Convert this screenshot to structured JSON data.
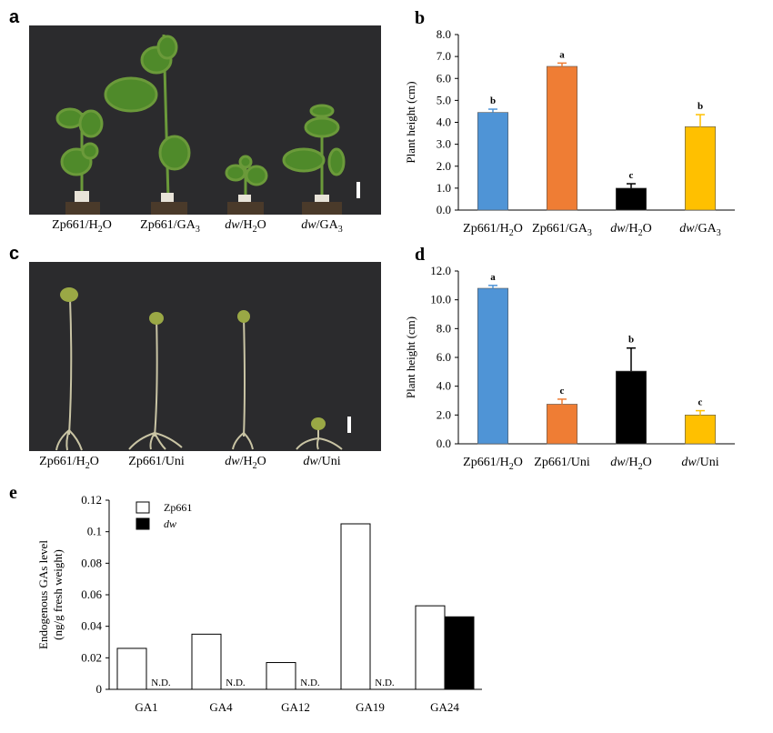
{
  "panels": {
    "a": {
      "letter": "a",
      "labels": [
        {
          "name": "Zp661",
          "suffix": "/H",
          "sub": "2",
          "end": "O",
          "italic": false
        },
        {
          "name": "Zp661",
          "suffix": "/GA",
          "sub": "3",
          "end": "",
          "italic": false
        },
        {
          "name": "dw",
          "suffix": "/H",
          "sub": "2",
          "end": "O",
          "italic": true
        },
        {
          "name": "dw",
          "suffix": "/GA",
          "sub": "3",
          "end": "",
          "italic": true
        }
      ]
    },
    "c": {
      "letter": "c",
      "labels": [
        {
          "name": "Zp661",
          "suffix": "/H",
          "sub": "2",
          "end": "O",
          "italic": false
        },
        {
          "name": "Zp661",
          "suffix": "/Uni",
          "sub": "",
          "end": "",
          "italic": false
        },
        {
          "name": "dw",
          "suffix": "/H",
          "sub": "2",
          "end": "O",
          "italic": true
        },
        {
          "name": "dw",
          "suffix": "/Uni",
          "sub": "",
          "end": "",
          "italic": true
        }
      ]
    }
  },
  "chart_data": [
    {
      "id": "b",
      "letter": "b",
      "type": "bar",
      "ylabel": "Plant height  (cm)",
      "ylim": [
        0,
        8
      ],
      "yticks": [
        "0.0",
        "1.0",
        "2.0",
        "3.0",
        "4.0",
        "5.0",
        "6.0",
        "7.0",
        "8.0"
      ],
      "categories": [
        {
          "name": "Zp661",
          "suffix": "/H",
          "sub": "2",
          "end": "O",
          "italic": false
        },
        {
          "name": "Zp661",
          "suffix": "/GA",
          "sub": "3",
          "end": "",
          "italic": false
        },
        {
          "name": "dw",
          "suffix": "/H",
          "sub": "2",
          "end": "O",
          "italic": true
        },
        {
          "name": "dw",
          "suffix": "/GA",
          "sub": "3",
          "end": "",
          "italic": true
        }
      ],
      "values": [
        4.45,
        6.55,
        1.0,
        3.8
      ],
      "errors": [
        0.15,
        0.15,
        0.2,
        0.55
      ],
      "letters": [
        "b",
        "a",
        "c",
        "b"
      ],
      "colors": [
        "#4f94d6",
        "#ef7d34",
        "#000000",
        "#ffc000"
      ]
    },
    {
      "id": "d",
      "letter": "d",
      "type": "bar",
      "ylabel": "Plant height (cm)",
      "ylim": [
        0,
        12
      ],
      "yticks": [
        "0.0",
        "2.0",
        "4.0",
        "6.0",
        "8.0",
        "10.0",
        "12.0"
      ],
      "categories": [
        {
          "name": "Zp661",
          "suffix": "/H",
          "sub": "2",
          "end": "O",
          "italic": false
        },
        {
          "name": "Zp661",
          "suffix": "/Uni",
          "sub": "",
          "end": "",
          "italic": false
        },
        {
          "name": "dw",
          "suffix": "/H",
          "sub": "2",
          "end": "O",
          "italic": true
        },
        {
          "name": "dw",
          "suffix": "/Uni",
          "sub": "",
          "end": "",
          "italic": true
        }
      ],
      "values": [
        10.8,
        2.75,
        5.05,
        2.0
      ],
      "errors": [
        0.2,
        0.35,
        1.6,
        0.3
      ],
      "letters": [
        "a",
        "c",
        "b",
        "c"
      ],
      "colors": [
        "#4f94d6",
        "#ef7d34",
        "#000000",
        "#ffc000"
      ]
    },
    {
      "id": "e",
      "letter": "e",
      "type": "bar",
      "ylabel_line1": "Endogenous GAs level",
      "ylabel_line2": "(ng/g fresh weight)",
      "ylim": [
        0,
        0.12
      ],
      "yticks": [
        "0",
        "0.02",
        "0.04",
        "0.06",
        "0.08",
        "0.1",
        "0.12"
      ],
      "categories": [
        "GA1",
        "GA4",
        "GA12",
        "GA19",
        "GA24"
      ],
      "series": [
        {
          "name": "Zp661",
          "values": [
            0.026,
            0.035,
            0.017,
            0.105,
            0.053
          ],
          "color": "#ffffff",
          "italic": false
        },
        {
          "name": "dw",
          "values": [
            null,
            null,
            null,
            null,
            0.046
          ],
          "color": "#000000",
          "italic": true
        }
      ],
      "nd_label": "N.D.",
      "legend_position": "top-left"
    }
  ]
}
